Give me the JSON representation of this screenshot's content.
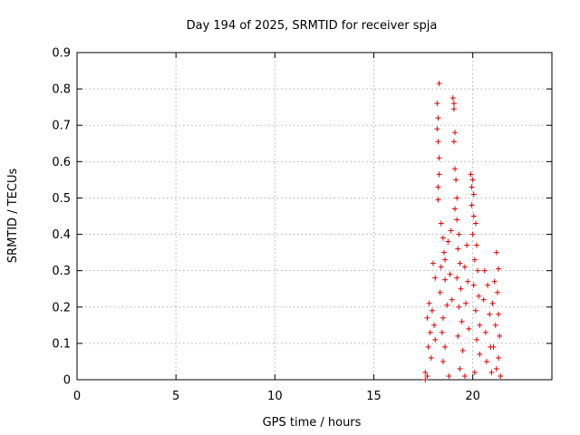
{
  "chart_data": {
    "type": "scatter",
    "title": "Day 194 of 2025, SRMTID for receiver spja",
    "xlabel": "GPS time / hours",
    "ylabel": "SRMTID / TECUs",
    "xlim": [
      0,
      24
    ],
    "ylim": [
      0,
      0.9
    ],
    "xticks": [
      0,
      5,
      10,
      15,
      20
    ],
    "xtick_labels": [
      "0",
      "5",
      "10",
      "15",
      "20"
    ],
    "yticks": [
      0,
      0.1,
      0.2,
      0.3,
      0.4,
      0.5,
      0.6,
      0.7,
      0.8,
      0.9
    ],
    "ytick_labels": [
      "0",
      "0.1",
      "0.2",
      "0.3",
      "0.4",
      "0.5",
      "0.6",
      "0.7",
      "0.8",
      "0.9"
    ],
    "grid": true,
    "marker": "+",
    "color": "#dd0000",
    "series": [
      {
        "name": "spja",
        "points": [
          [
            18.3,
            0.815
          ],
          [
            18.2,
            0.76
          ],
          [
            18.25,
            0.72
          ],
          [
            18.2,
            0.69
          ],
          [
            18.25,
            0.655
          ],
          [
            18.3,
            0.61
          ],
          [
            18.3,
            0.565
          ],
          [
            18.25,
            0.53
          ],
          [
            18.25,
            0.495
          ],
          [
            18.4,
            0.43
          ],
          [
            18.5,
            0.39
          ],
          [
            18.55,
            0.35
          ],
          [
            18.4,
            0.31
          ],
          [
            18.6,
            0.275
          ],
          [
            18.35,
            0.24
          ],
          [
            18.7,
            0.205
          ],
          [
            18.5,
            0.17
          ],
          [
            18.45,
            0.13
          ],
          [
            18.6,
            0.09
          ],
          [
            18.5,
            0.05
          ],
          [
            19.0,
            0.775
          ],
          [
            19.05,
            0.76
          ],
          [
            19.05,
            0.745
          ],
          [
            19.1,
            0.68
          ],
          [
            19.05,
            0.655
          ],
          [
            19.1,
            0.58
          ],
          [
            19.15,
            0.55
          ],
          [
            19.2,
            0.5
          ],
          [
            19.1,
            0.47
          ],
          [
            19.2,
            0.44
          ],
          [
            19.3,
            0.4
          ],
          [
            19.25,
            0.36
          ],
          [
            19.35,
            0.32
          ],
          [
            19.2,
            0.28
          ],
          [
            19.4,
            0.25
          ],
          [
            19.3,
            0.2
          ],
          [
            19.45,
            0.16
          ],
          [
            19.25,
            0.12
          ],
          [
            19.5,
            0.08
          ],
          [
            19.35,
            0.03
          ],
          [
            19.9,
            0.565
          ],
          [
            20.0,
            0.55
          ],
          [
            19.95,
            0.53
          ],
          [
            20.05,
            0.51
          ],
          [
            19.95,
            0.48
          ],
          [
            20.05,
            0.45
          ],
          [
            20.15,
            0.43
          ],
          [
            20.0,
            0.4
          ],
          [
            20.2,
            0.37
          ],
          [
            20.1,
            0.33
          ],
          [
            20.25,
            0.3
          ],
          [
            20.05,
            0.26
          ],
          [
            20.3,
            0.23
          ],
          [
            20.15,
            0.19
          ],
          [
            20.35,
            0.15
          ],
          [
            20.2,
            0.11
          ],
          [
            20.35,
            0.07
          ],
          [
            20.1,
            0.02
          ],
          [
            21.2,
            0.35
          ],
          [
            21.3,
            0.305
          ],
          [
            21.1,
            0.27
          ],
          [
            21.25,
            0.24
          ],
          [
            21.0,
            0.21
          ],
          [
            21.3,
            0.18
          ],
          [
            21.15,
            0.15
          ],
          [
            21.35,
            0.12
          ],
          [
            21.05,
            0.09
          ],
          [
            21.3,
            0.06
          ],
          [
            21.2,
            0.03
          ],
          [
            21.4,
            0.01
          ],
          [
            18.9,
            0.41
          ],
          [
            18.75,
            0.38
          ],
          [
            18.6,
            0.33
          ],
          [
            18.85,
            0.29
          ],
          [
            18.95,
            0.22
          ],
          [
            19.7,
            0.37
          ],
          [
            19.6,
            0.31
          ],
          [
            19.75,
            0.27
          ],
          [
            19.65,
            0.21
          ],
          [
            19.8,
            0.14
          ],
          [
            20.6,
            0.3
          ],
          [
            20.75,
            0.26
          ],
          [
            20.55,
            0.22
          ],
          [
            20.85,
            0.18
          ],
          [
            20.65,
            0.13
          ],
          [
            20.9,
            0.09
          ],
          [
            20.7,
            0.05
          ],
          [
            20.95,
            0.02
          ],
          [
            17.8,
            0.21
          ],
          [
            17.7,
            0.17
          ],
          [
            17.85,
            0.13
          ],
          [
            17.75,
            0.09
          ],
          [
            17.9,
            0.06
          ],
          [
            17.6,
            0.02
          ],
          [
            17.6,
            0.0
          ],
          [
            17.95,
            0.19
          ],
          [
            18.05,
            0.15
          ],
          [
            18.1,
            0.11
          ],
          [
            18.0,
            0.32
          ],
          [
            18.1,
            0.28
          ],
          [
            17.7,
            0.01
          ],
          [
            18.8,
            0.01
          ],
          [
            19.6,
            0.01
          ]
        ]
      }
    ]
  }
}
